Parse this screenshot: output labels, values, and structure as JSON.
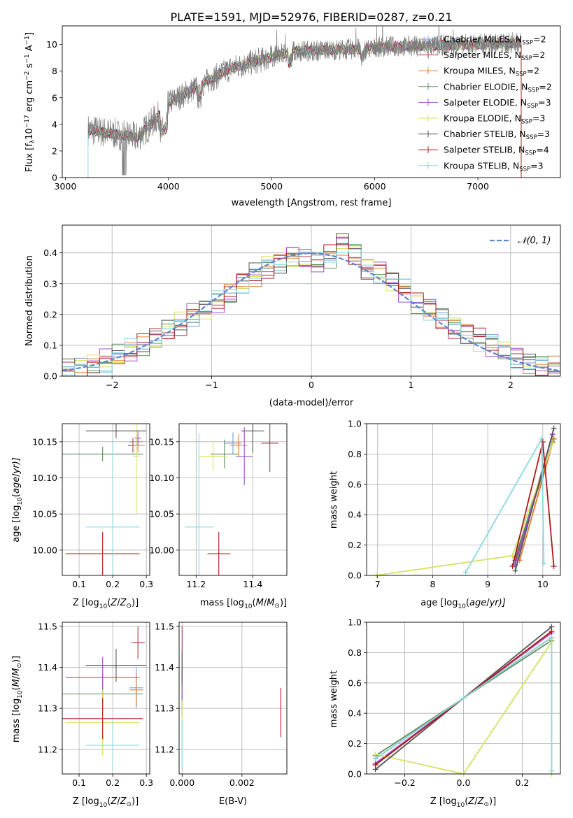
{
  "figure_title": "PLATE=1591, MJD=52976, FIBERID=0287, z=0.21",
  "models": [
    {
      "name": "Chabrier MILES, N",
      "nssp": "=2",
      "color": "#6f9fd8"
    },
    {
      "name": "Salpeter MILES, N",
      "nssp": "=2",
      "color": "#a83a4a"
    },
    {
      "name": "Kroupa MILES, N",
      "nssp": "=2",
      "color": "#e07b2a"
    },
    {
      "name": "Chabrier ELODIE, N",
      "nssp": "=2",
      "color": "#5a8f5a"
    },
    {
      "name": "Salpeter ELODIE, N",
      "nssp": "=3",
      "color": "#a04fc8"
    },
    {
      "name": "Kroupa ELODIE, N",
      "nssp": "=3",
      "color": "#d8e060"
    },
    {
      "name": "Chabrier STELIB, N",
      "nssp": "=3",
      "color": "#555555"
    },
    {
      "name": "Salpeter STELIB, N",
      "nssp": "=4",
      "color": "#b01818"
    },
    {
      "name": "Kroupa STELIB, N",
      "nssp": "=3",
      "color": "#88d8e0"
    }
  ],
  "nssp_sub": "SSP",
  "chart_data": [
    {
      "id": "spectrum",
      "type": "line",
      "xlabel": "wavelength [Angstrom, rest frame]",
      "ylabel_pre": "Flux [f",
      "ylabel_sub": "λ",
      "ylabel_mid": "10",
      "ylabel_sup1": "−17",
      "ylabel_post": " erg cm",
      "ylabel_sup2": "−2",
      "ylabel_s": " s",
      "ylabel_sup3": "−1",
      "ylabel_a": " A",
      "ylabel_sup4": "−1",
      "ylabel_end": "]",
      "xlim": [
        2970,
        7800
      ],
      "ylim": [
        0,
        11.4
      ],
      "xticks": [
        3000,
        4000,
        5000,
        6000,
        7000
      ],
      "yticks": [
        0,
        2,
        4,
        6,
        8,
        10
      ],
      "coverage": [
        3220,
        7420
      ]
    },
    {
      "id": "residuals",
      "type": "line",
      "xlabel": "(data-model)/error",
      "ylabel": "Normed distribution",
      "xlim": [
        -2.5,
        2.5
      ],
      "ylim": [
        0,
        0.49
      ],
      "xticks": [
        -2,
        -1,
        0,
        1,
        2
      ],
      "xtick_labels": [
        "−2",
        "−1",
        "0",
        "1",
        "2"
      ],
      "yticks": [
        0,
        0.1,
        0.2,
        0.3,
        0.4
      ],
      "ytick_labels": [
        "0.0",
        "0.1",
        "0.2",
        "0.3",
        "0.4"
      ],
      "legend": "𝒩(0, 1)",
      "legend_position": "top-right",
      "grid": true,
      "bins": [
        -2.5,
        -2.375,
        -2.25,
        -2.125,
        -2.0,
        -1.875,
        -1.75,
        -1.625,
        -1.5,
        -1.375,
        -1.25,
        -1.125,
        -1.0,
        -0.875,
        -0.75,
        -0.625,
        -0.5,
        -0.375,
        -0.25,
        -0.125,
        0.0,
        0.125,
        0.25,
        0.375,
        0.5,
        0.625,
        0.75,
        0.875,
        1.0,
        1.125,
        1.25,
        1.375,
        1.5,
        1.625,
        1.75,
        1.875,
        2.0,
        2.125,
        2.25,
        2.375,
        2.5
      ],
      "hist": [
        0.018,
        0.023,
        0.038,
        0.05,
        0.067,
        0.082,
        0.1,
        0.12,
        0.15,
        0.17,
        0.2,
        0.22,
        0.24,
        0.265,
        0.3,
        0.33,
        0.355,
        0.37,
        0.39,
        0.38,
        0.37,
        0.39,
        0.43,
        0.4,
        0.35,
        0.34,
        0.31,
        0.28,
        0.24,
        0.22,
        0.19,
        0.16,
        0.14,
        0.12,
        0.1,
        0.08,
        0.06,
        0.045,
        0.035,
        0.028
      ]
    },
    {
      "id": "age_vs_z",
      "type": "scatter",
      "xlabel": "Z [log",
      "xlabel_sub": "10",
      "xlabel_rest": "(Z/Z",
      "xlabel_sun": "⊙",
      "xlabel_end": ")]",
      "ylabel": "age  [log",
      "ylabel_sub": "10",
      "ylabel_rest": "(age/yr)]",
      "xlim": [
        0.05,
        0.31
      ],
      "ylim": [
        9.965,
        10.175
      ],
      "xticks": [
        0.1,
        0.2,
        0.3
      ],
      "yticks": [
        10.0,
        10.05,
        10.1,
        10.15
      ],
      "ytick_labels": [
        "10.00",
        "10.05",
        "10.10",
        "10.15"
      ],
      "points": [
        {
          "x": 0.27,
          "y": 10.15,
          "xe": 0.02,
          "ye": 0.01
        },
        {
          "x": 0.26,
          "y": 10.145,
          "xe": 0.015,
          "ye": 0.01
        },
        {
          "x": 0.275,
          "y": 10.145,
          "xe": 0.02,
          "ye": 0.01
        },
        {
          "x": 0.17,
          "y": 10.133,
          "xe": 0.12,
          "ye": 0.01
        },
        {
          "x": 0.275,
          "y": 10.155,
          "xe": 0.01,
          "ye": 0.01
        },
        {
          "x": 0.27,
          "y": 10.13,
          "xe": 0.01,
          "ye": 0.08
        },
        {
          "x": 0.21,
          "y": 10.165,
          "xe": 0.09,
          "ye": 0.01
        },
        {
          "x": 0.17,
          "y": 9.995,
          "xe": 0.11,
          "ye": 0.03
        },
        {
          "x": 0.2,
          "y": 10.032,
          "xe": 0.08,
          "ye": 0.12
        }
      ]
    },
    {
      "id": "age_vs_mass",
      "type": "scatter",
      "xlabel": "mass [log",
      "xlabel_sub": "10",
      "xlabel_rest": "(M/M",
      "xlabel_sun": "⊙",
      "xlabel_end": ")]",
      "xlim": [
        11.14,
        11.52
      ],
      "ylim": [
        9.965,
        10.175
      ],
      "xticks": [
        11.2,
        11.4
      ],
      "xtick_labels": [
        "11.2",
        "11.4"
      ],
      "yticks": [
        10.0,
        10.05,
        10.1,
        10.15
      ],
      "ytick_labels": [
        "10.00",
        "10.05",
        "10.10",
        "10.15"
      ],
      "points": [
        {
          "x": 11.33,
          "y": 10.148,
          "xe": 0.03,
          "ye": 0.015
        },
        {
          "x": 11.46,
          "y": 10.148,
          "xe": 0.03,
          "ye": 0.04
        },
        {
          "x": 11.35,
          "y": 10.145,
          "xe": 0.03,
          "ye": 0.015
        },
        {
          "x": 11.3,
          "y": 10.133,
          "xe": 0.05,
          "ye": 0.02
        },
        {
          "x": 11.37,
          "y": 10.13,
          "xe": 0.03,
          "ye": 0.04
        },
        {
          "x": 11.26,
          "y": 10.13,
          "xe": 0.05,
          "ye": 0.02
        },
        {
          "x": 11.4,
          "y": 10.165,
          "xe": 0.04,
          "ye": 0.03
        },
        {
          "x": 11.28,
          "y": 9.995,
          "xe": 0.04,
          "ye": 0.03
        },
        {
          "x": 11.21,
          "y": 10.032,
          "xe": 0.05,
          "ye": 0.13
        }
      ]
    },
    {
      "id": "weight_vs_age",
      "type": "line",
      "xlabel": "age  [log",
      "xlabel_sub": "10",
      "xlabel_rest": "(age/yr)]",
      "ylabel": "mass weight",
      "xlim": [
        6.8,
        10.32
      ],
      "ylim": [
        0,
        1
      ],
      "xticks": [
        7,
        8,
        9,
        10
      ],
      "yticks": [
        0,
        0.2,
        0.4,
        0.6,
        0.8,
        1.0
      ],
      "ytick_labels": [
        "0.0",
        "0.2",
        "0.4",
        "0.6",
        "0.8",
        "1.0"
      ],
      "series": [
        {
          "x": [
            9.48,
            10.18
          ],
          "y": [
            0.07,
            0.93
          ]
        },
        {
          "x": [
            9.5,
            10.2
          ],
          "y": [
            0.1,
            0.9
          ]
        },
        {
          "x": [
            9.58,
            10.2
          ],
          "y": [
            0.1,
            0.9
          ]
        },
        {
          "x": [
            9.5,
            10.18
          ],
          "y": [
            0.12,
            0.88
          ]
        },
        {
          "x": [
            9.5,
            10.18
          ],
          "y": [
            0.07,
            0.93
          ]
        },
        {
          "x": [
            6.98,
            9.45,
            10.18
          ],
          "y": [
            0.0,
            0.13,
            0.87
          ]
        },
        {
          "x": [
            9.5,
            10.2
          ],
          "y": [
            0.03,
            0.97
          ]
        },
        {
          "x": [
            9.45,
            10.0,
            10.2
          ],
          "y": [
            0.06,
            0.88,
            0.06
          ]
        },
        {
          "x": [
            8.6,
            9.98,
            10.02
          ],
          "y": [
            0.02,
            0.9,
            0.08
          ]
        }
      ]
    },
    {
      "id": "mass_vs_z",
      "type": "scatter",
      "xlabel": "Z [log",
      "xlabel_sub": "10",
      "xlabel_rest": "(Z/Z",
      "xlabel_sun": "⊙",
      "xlabel_end": ")]",
      "ylabel": "mass [log",
      "ylabel_sub": "10",
      "ylabel_rest": "(M/M",
      "ylabel_sun": "⊙",
      "ylabel_end": ")]",
      "xlim": [
        0.05,
        0.31
      ],
      "ylim": [
        11.14,
        11.51
      ],
      "xticks": [
        0.1,
        0.2,
        0.3
      ],
      "yticks": [
        11.2,
        11.3,
        11.4,
        11.5
      ],
      "points": [
        {
          "x": 0.27,
          "y": 11.35,
          "xe": 0.02,
          "ye": 0.05
        },
        {
          "x": 0.275,
          "y": 11.46,
          "xe": 0.02,
          "ye": 0.04
        },
        {
          "x": 0.27,
          "y": 11.345,
          "xe": 0.02,
          "ye": 0.04
        },
        {
          "x": 0.17,
          "y": 11.335,
          "xe": 0.12,
          "ye": 0.05
        },
        {
          "x": 0.17,
          "y": 11.375,
          "xe": 0.11,
          "ye": 0.05
        },
        {
          "x": 0.17,
          "y": 11.265,
          "xe": 0.11,
          "ye": 0.08
        },
        {
          "x": 0.21,
          "y": 11.405,
          "xe": 0.09,
          "ye": 0.04
        },
        {
          "x": 0.17,
          "y": 11.275,
          "xe": 0.12,
          "ye": 0.05
        },
        {
          "x": 0.2,
          "y": 11.21,
          "xe": 0.08,
          "ye": 0.06
        }
      ]
    },
    {
      "id": "mass_vs_ebv",
      "type": "scatter",
      "xlabel": "E(B-V)",
      "xlim": [
        -0.0001,
        0.0035
      ],
      "ylim": [
        11.14,
        11.51
      ],
      "xticks": [
        0,
        0.002
      ],
      "xtick_labels": [
        "0.000",
        "0.002"
      ],
      "yticks": [
        11.2,
        11.3,
        11.4,
        11.5
      ],
      "points": [
        {
          "x": 0.0,
          "y": 11.35,
          "xe": 0,
          "ye": 0.05
        },
        {
          "x": 0.0,
          "y": 11.46,
          "xe": 0,
          "ye": 0.04
        },
        {
          "x": 0.0,
          "y": 11.35,
          "xe": 0,
          "ye": 0.05
        },
        {
          "x": 0.0,
          "y": 11.33,
          "xe": 0,
          "ye": 0.05
        },
        {
          "x": 0.0,
          "y": 11.37,
          "xe": 0,
          "ye": 0.05
        },
        {
          "x": 0.0,
          "y": 11.26,
          "xe": 0,
          "ye": 0.06
        },
        {
          "x": 0.0,
          "y": 11.4,
          "xe": 0,
          "ye": 0.04
        },
        {
          "x": 0.0033,
          "y": 11.29,
          "xe": 0,
          "ye": 0.06
        },
        {
          "x": 0.0,
          "y": 11.21,
          "xe": 0,
          "ye": 0.06
        }
      ]
    },
    {
      "id": "weight_vs_z",
      "type": "line",
      "xlabel": "Z [log",
      "xlabel_sub": "10",
      "xlabel_rest": "(Z/Z",
      "xlabel_sun": "⊙",
      "xlabel_end": ")]",
      "ylabel": "mass weight",
      "xlim": [
        -0.33,
        0.33
      ],
      "ylim": [
        0,
        1
      ],
      "xticks": [
        -0.2,
        0,
        0.2
      ],
      "xtick_labels": [
        "−0.2",
        "0.0",
        "0.2"
      ],
      "yticks": [
        0,
        0.2,
        0.4,
        0.6,
        0.8,
        1.0
      ],
      "ytick_labels": [
        "0.0",
        "0.2",
        "0.4",
        "0.6",
        "0.8",
        "1.0"
      ],
      "series": [
        {
          "x": [
            -0.3,
            0.3
          ],
          "y": [
            0.07,
            0.93
          ]
        },
        {
          "x": [
            -0.3,
            0.3
          ],
          "y": [
            0.1,
            0.9
          ]
        },
        {
          "x": [
            -0.3,
            0.3
          ],
          "y": [
            0.1,
            0.9
          ]
        },
        {
          "x": [
            -0.3,
            0.3
          ],
          "y": [
            0.12,
            0.88
          ]
        },
        {
          "x": [
            -0.3,
            0.3
          ],
          "y": [
            0.07,
            0.93
          ]
        },
        {
          "x": [
            -0.3,
            0.0,
            0.3,
            0.3
          ],
          "y": [
            0.13,
            0.0,
            0.87,
            0.0
          ]
        },
        {
          "x": [
            -0.3,
            0.3
          ],
          "y": [
            0.03,
            0.97
          ]
        },
        {
          "x": [
            -0.3,
            0.3
          ],
          "y": [
            0.06,
            0.94
          ]
        },
        {
          "x": [
            -0.3,
            0.0,
            0.3,
            0.3
          ],
          "y": [
            0.1,
            0.5,
            0.9,
            0.02
          ]
        }
      ]
    }
  ]
}
